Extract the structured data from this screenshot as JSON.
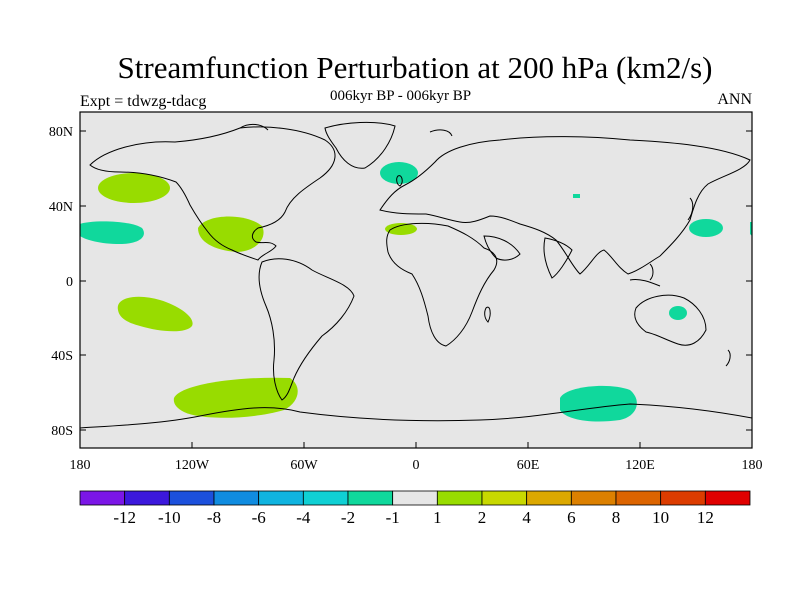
{
  "title": "Streamfunction Perturbation at 200 hPa (km2/s)",
  "subtitle": "006kyr BP - 006kyr BP",
  "left_label": "Expt = tdwzg-tdacg",
  "right_label": "ANN",
  "lat_ticks": [
    "80N",
    "40N",
    "0",
    "40S",
    "80S"
  ],
  "lon_ticks": [
    "180",
    "120W",
    "60W",
    "0",
    "60E",
    "120E",
    "180"
  ],
  "colorbar": {
    "colors": [
      "#7b16e6",
      "#3c18dc",
      "#1c50dc",
      "#108ce0",
      "#10b4e0",
      "#10d0d4",
      "#10d89c",
      "#e6e6e6",
      "#98dc00",
      "#c8d800",
      "#dca800",
      "#dc8000",
      "#dc6400",
      "#dc3c00",
      "#e00000"
    ],
    "labels": [
      "-12",
      "-10",
      "-8",
      "-6",
      "-4",
      "-2",
      "-1",
      "1",
      "2",
      "4",
      "6",
      "8",
      "10",
      "12"
    ]
  },
  "colors": {
    "land_ocean": "#e6e6e6",
    "positive": "#98dc00",
    "negative": "#10d89c"
  }
}
